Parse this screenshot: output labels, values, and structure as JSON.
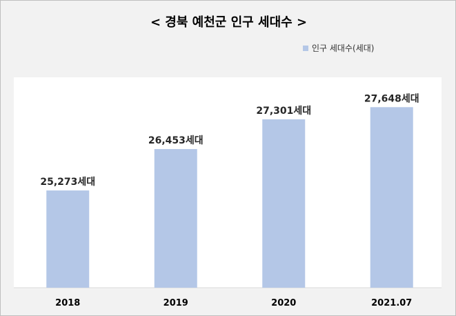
{
  "chart_data": {
    "type": "bar",
    "title": "< 경북 예천군 인구 세대수 >",
    "categories": [
      "2018",
      "2019",
      "2020",
      "2021.07"
    ],
    "series": [
      {
        "name": "인구 세대수(세대)",
        "values": [
          25273,
          26453,
          27301,
          27648
        ],
        "labels": [
          "25,273세대",
          "26,453세대",
          "27,301세대",
          "27,648세대"
        ],
        "color": "#b4c7e7"
      }
    ],
    "legend_position": "top-right",
    "grid": false,
    "ylim": [
      22500,
      28500
    ]
  }
}
